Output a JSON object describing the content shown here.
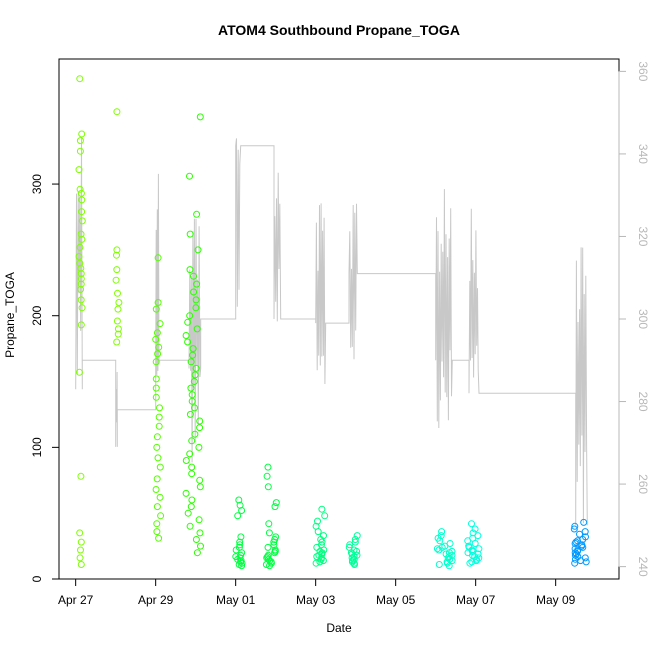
{
  "chart_data": {
    "type": "scatter",
    "title": "ATOM4 Southbound Propane_TOGA",
    "xlabel": "Date",
    "ylabel": "Propane_TOGA",
    "xlim": [
      "2018-04-26T14:00",
      "2018-05-10T14:00"
    ],
    "ylim": [
      0,
      395
    ],
    "y2lim": [
      237,
      363
    ],
    "x_ticks": [
      {
        "date": "2018-04-27",
        "label": "Apr 27"
      },
      {
        "date": "2018-04-29",
        "label": "Apr 29"
      },
      {
        "date": "2018-05-01",
        "label": "May 01"
      },
      {
        "date": "2018-05-03",
        "label": "May 03"
      },
      {
        "date": "2018-05-05",
        "label": "May 05"
      },
      {
        "date": "2018-05-07",
        "label": "May 07"
      },
      {
        "date": "2018-05-09",
        "label": "May 09"
      }
    ],
    "y_ticks": [
      0,
      100,
      200,
      300
    ],
    "y2_ticks": [
      240,
      260,
      280,
      300,
      320,
      340,
      360
    ],
    "grid": false,
    "series_colors": {
      "line": "#c8c8c8",
      "points_green_light": "#7fff00",
      "points_green": "#00ff40",
      "points_teal": "#00ffaa",
      "points_cyan": "#00e5ff",
      "points_blue": "#0099ff"
    },
    "point_clusters": [
      {
        "start": "2018-04-27T02:00",
        "end": "2018-04-27T04:00",
        "color": "#7fff00",
        "values": [
          380,
          338,
          333,
          325,
          311,
          296,
          293,
          288,
          279,
          272,
          262,
          258,
          252,
          245,
          240,
          236,
          232,
          228,
          224,
          220,
          212,
          206,
          193,
          157,
          78,
          35,
          28,
          22,
          16,
          11
        ]
      },
      {
        "start": "2018-04-28T00:00",
        "end": "2018-04-28T02:00",
        "color": "#7fff00",
        "values": [
          355,
          250,
          246,
          235,
          227,
          217,
          210,
          205,
          196,
          190,
          186,
          180
        ]
      },
      {
        "start": "2018-04-29T00:00",
        "end": "2018-04-29T03:00",
        "color": "#55ff00",
        "values": [
          244,
          210,
          205,
          194,
          187,
          182,
          176,
          171,
          165,
          152,
          145,
          138,
          130,
          123,
          116,
          108,
          100,
          92,
          85,
          76,
          68,
          62,
          55,
          48,
          42,
          36,
          31
        ]
      },
      {
        "start": "2018-04-29T18:00",
        "end": "2018-04-30T03:00",
        "color": "#2bff00",
        "values": [
          351,
          306,
          277,
          262,
          250,
          235,
          230,
          224,
          218,
          212,
          206,
          200,
          195,
          190,
          185,
          180,
          175,
          170,
          165,
          160,
          155,
          150,
          145,
          140,
          135,
          130,
          125,
          120,
          115,
          110,
          105,
          100,
          95,
          90,
          85,
          80,
          75,
          70,
          65,
          60,
          55,
          50,
          45,
          40,
          35,
          30,
          25,
          20
        ]
      },
      {
        "start": "2018-05-01T00:00",
        "end": "2018-05-01T04:00",
        "color": "#00ff40",
        "values": [
          60,
          56,
          52,
          48,
          32,
          28,
          26,
          24,
          22,
          20,
          18,
          17,
          16,
          15,
          14,
          13,
          12,
          11,
          10
        ]
      },
      {
        "start": "2018-05-01T18:00",
        "end": "2018-05-02T01:00",
        "color": "#00ff40",
        "values": [
          85,
          78,
          70,
          58,
          55,
          42,
          35,
          32,
          30,
          28,
          26,
          24,
          22,
          21,
          20,
          18,
          17,
          16,
          15,
          14,
          13,
          12,
          11,
          10
        ]
      },
      {
        "start": "2018-05-03T00:00",
        "end": "2018-05-03T06:00",
        "color": "#00ff80",
        "values": [
          53,
          48,
          44,
          40,
          36,
          33,
          30,
          28,
          26,
          24,
          22,
          21,
          20,
          19,
          18,
          17,
          16,
          15,
          14,
          13,
          12
        ]
      },
      {
        "start": "2018-05-03T19:00",
        "end": "2018-05-04T01:00",
        "color": "#00ff99",
        "values": [
          33,
          30,
          28,
          26,
          24,
          22,
          21,
          20,
          19,
          18,
          17,
          16,
          15,
          14,
          13,
          12,
          11
        ]
      },
      {
        "start": "2018-05-06T01:00",
        "end": "2018-05-06T10:00",
        "color": "#00ffcc",
        "values": [
          36,
          33,
          31,
          29,
          27,
          25,
          24,
          23,
          22,
          21,
          20,
          19,
          18,
          17,
          16,
          15,
          14,
          13,
          12,
          11,
          10
        ]
      },
      {
        "start": "2018-05-06T19:00",
        "end": "2018-05-07T02:00",
        "color": "#00ffdd",
        "values": [
          42,
          38,
          35,
          33,
          31,
          29,
          27,
          25,
          24,
          23,
          22,
          21,
          20,
          19,
          18,
          17,
          16,
          15,
          14,
          13,
          12
        ]
      },
      {
        "start": "2018-05-09T11:00",
        "end": "2018-05-09T19:00",
        "color": "#0099ff",
        "values": [
          43,
          40,
          38,
          36,
          34,
          32,
          30,
          29,
          28,
          27,
          26,
          25,
          24,
          23,
          22,
          21,
          20,
          19,
          18,
          17,
          16,
          15,
          14,
          13,
          12
        ]
      }
    ],
    "line_segments": [
      {
        "start": "2018-04-27T00:00",
        "end": "2018-04-27T04:00",
        "min": 278,
        "max": 349,
        "base": 283
      },
      {
        "start": "2018-04-27T04:00",
        "end": "2018-04-28T00:00",
        "min": 290,
        "max": 290,
        "base": 290
      },
      {
        "start": "2018-04-28T00:00",
        "end": "2018-04-28T01:00",
        "min": 269,
        "max": 290,
        "base": 269
      },
      {
        "start": "2018-04-28T01:00",
        "end": "2018-04-29T00:00",
        "min": 278,
        "max": 278,
        "base": 278
      },
      {
        "start": "2018-04-29T00:00",
        "end": "2018-04-29T02:00",
        "min": 282,
        "max": 340,
        "base": 289
      },
      {
        "start": "2018-04-29T02:00",
        "end": "2018-04-29T20:00",
        "min": 290,
        "max": 290,
        "base": 290
      },
      {
        "start": "2018-04-29T20:00",
        "end": "2018-04-30T03:00",
        "min": 262,
        "max": 335,
        "base": 288
      },
      {
        "start": "2018-04-30T03:00",
        "end": "2018-05-01T00:00",
        "min": 300,
        "max": 300,
        "base": 300
      },
      {
        "start": "2018-05-01T00:00",
        "end": "2018-05-01T03:00",
        "min": 300,
        "max": 347,
        "base": 342
      },
      {
        "start": "2018-05-01T03:00",
        "end": "2018-05-01T23:00",
        "min": 342,
        "max": 342,
        "base": 342
      },
      {
        "start": "2018-05-01T23:00",
        "end": "2018-05-02T03:00",
        "min": 295,
        "max": 344,
        "base": 300
      },
      {
        "start": "2018-05-02T03:00",
        "end": "2018-05-03T00:00",
        "min": 300,
        "max": 300,
        "base": 300
      },
      {
        "start": "2018-05-03T00:00",
        "end": "2018-05-03T06:00",
        "min": 276,
        "max": 330,
        "base": 299
      },
      {
        "start": "2018-05-03T06:00",
        "end": "2018-05-03T20:00",
        "min": 299,
        "max": 299,
        "base": 299
      },
      {
        "start": "2018-05-03T20:00",
        "end": "2018-05-04T01:00",
        "min": 286,
        "max": 328,
        "base": 311
      },
      {
        "start": "2018-05-04T01:00",
        "end": "2018-05-06T00:00",
        "min": 311,
        "max": 311,
        "base": 311
      },
      {
        "start": "2018-05-06T00:00",
        "end": "2018-05-06T10:00",
        "min": 268,
        "max": 332,
        "base": 290
      },
      {
        "start": "2018-05-06T10:00",
        "end": "2018-05-06T20:00",
        "min": 290,
        "max": 290,
        "base": 290
      },
      {
        "start": "2018-05-06T20:00",
        "end": "2018-05-07T02:00",
        "min": 278,
        "max": 327,
        "base": 282
      },
      {
        "start": "2018-05-07T02:00",
        "end": "2018-05-09T12:00",
        "min": 282,
        "max": 282,
        "base": 282
      },
      {
        "start": "2018-05-09T12:00",
        "end": "2018-05-09T19:00",
        "min": 243,
        "max": 320,
        "base": 250
      }
    ]
  }
}
